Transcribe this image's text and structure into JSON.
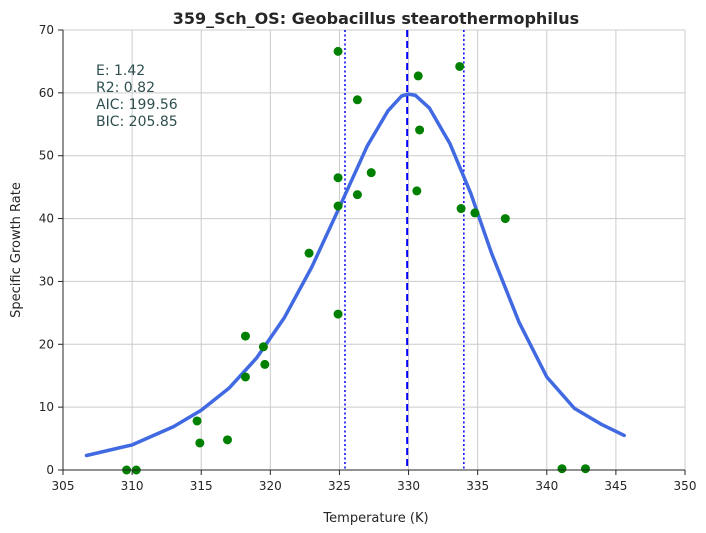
{
  "chart_data": {
    "type": "scatter",
    "title": "359_Sch_OS: Geobacillus stearothermophilus",
    "xlabel": "Temperature (K)",
    "ylabel": "Specific Growth Rate",
    "xlim": [
      305,
      350
    ],
    "ylim": [
      0,
      70
    ],
    "xticks": [
      "305",
      "310",
      "315",
      "320",
      "325",
      "330",
      "335",
      "340",
      "345",
      "350"
    ],
    "yticks": [
      "0",
      "10",
      "20",
      "30",
      "40",
      "50",
      "60",
      "70"
    ],
    "grid": true,
    "stats": [
      {
        "label": "E:",
        "value": "1.42"
      },
      {
        "label": "R2:",
        "value": "0.82"
      },
      {
        "label": "AIC:",
        "value": "199.56"
      },
      {
        "label": "BIC:",
        "value": "205.85"
      }
    ],
    "points": {
      "color": "#008000",
      "x": [
        309.6,
        310.3,
        314.7,
        314.9,
        316.9,
        318.2,
        318.2,
        319.5,
        319.6,
        322.8,
        324.9,
        324.9,
        324.9,
        324.9,
        326.3,
        326.3,
        327.3,
        330.6,
        330.7,
        330.8,
        333.7,
        333.8,
        334.8,
        337.0,
        341.1,
        342.8
      ],
      "y": [
        0.0,
        0.0,
        7.8,
        4.3,
        4.8,
        21.3,
        14.8,
        19.6,
        16.8,
        34.5,
        66.6,
        46.5,
        42.0,
        24.8,
        58.9,
        43.8,
        47.3,
        44.4,
        62.7,
        54.1,
        64.2,
        41.6,
        40.9,
        40.0,
        0.2,
        0.2
      ]
    },
    "fit_curve": {
      "color": "#4169e1",
      "x": [
        306.7,
        310,
        313,
        315,
        317,
        319,
        321,
        323,
        325,
        327,
        328.5,
        329.5,
        330,
        330.5,
        331.5,
        333,
        334.5,
        336,
        338,
        340,
        342,
        344,
        345.6
      ],
      "y": [
        2.3,
        4.0,
        6.9,
        9.5,
        13.0,
        17.8,
        24.2,
        32.3,
        41.8,
        51.5,
        57.1,
        59.5,
        59.8,
        59.6,
        57.6,
        51.9,
        44.0,
        34.5,
        23.5,
        14.8,
        9.8,
        7.2,
        5.5
      ]
    },
    "vlines": [
      {
        "x": 329.9,
        "style": "dashed",
        "color": "#0000ff"
      },
      {
        "x": 325.4,
        "style": "dotted",
        "color": "#0000ff"
      },
      {
        "x": 334.0,
        "style": "dotted",
        "color": "#0000ff"
      }
    ]
  }
}
